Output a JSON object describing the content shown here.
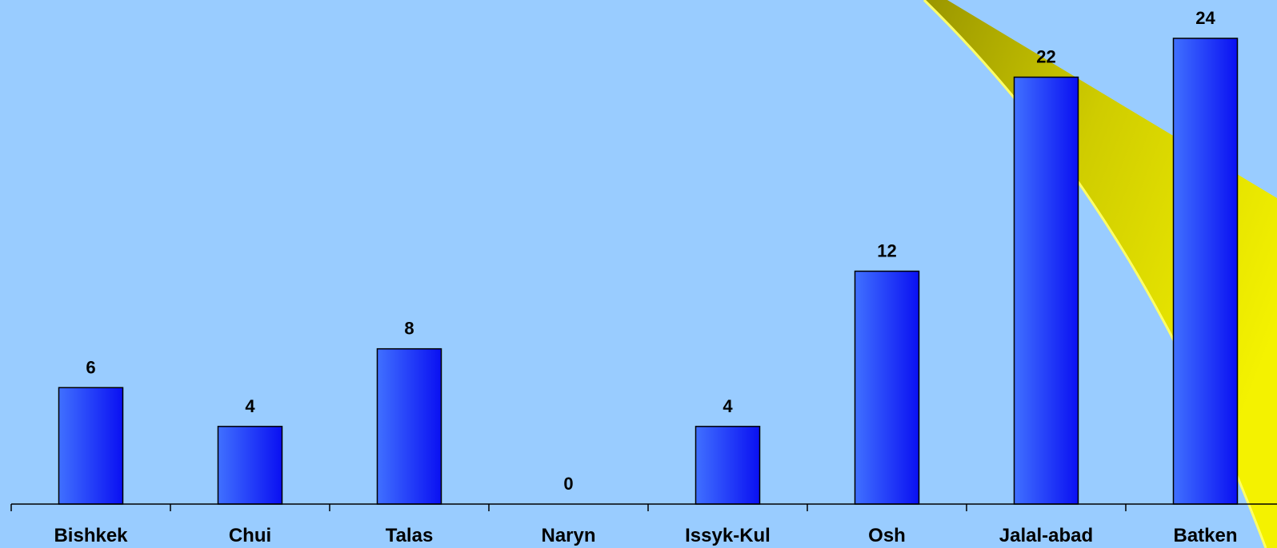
{
  "chart_data": {
    "type": "bar",
    "title": "",
    "xlabel": "",
    "ylabel": "",
    "categories": [
      "Bishkek",
      "Chui",
      "Talas",
      "Naryn",
      "Issyk-Kul",
      "Osh",
      "Jalal-abad",
      "Batken"
    ],
    "values": [
      6,
      4,
      8,
      0,
      4,
      12,
      22,
      24
    ],
    "ylim": [
      0,
      24
    ],
    "grid": false,
    "legend": "none",
    "data_labels": true,
    "colors": {
      "background": "#99ccff",
      "bar_light": "#3f6cff",
      "bar_dark": "#0a14f0",
      "bar_outline": "#000000",
      "decoration_yellow": "#f2f000"
    }
  }
}
